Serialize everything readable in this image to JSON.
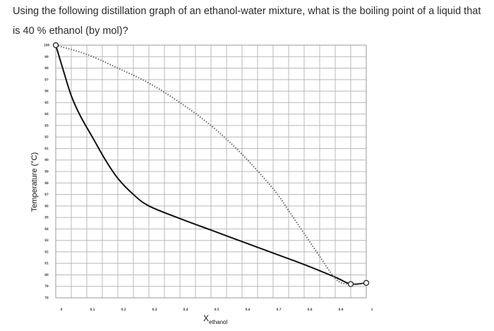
{
  "question": {
    "text": "Using the following distillation graph of an ethanol-water mixture, what is the boiling point of a liquid that is 40 % ethanol (by mol)?"
  },
  "chart_data": {
    "type": "line",
    "title": "",
    "xlabel_main": "X",
    "xlabel_sub": "ethanol",
    "ylabel": "Temperature (°C)",
    "xlim": [
      0,
      1
    ],
    "ylim": [
      78,
      100
    ],
    "x_ticks": [
      "0",
      "0.1",
      "0.2",
      "0.3",
      "0.4",
      "0.5",
      "0.6",
      "0.7",
      "0.8",
      "0.9",
      "1"
    ],
    "y_ticks": [
      "100",
      "99",
      "98",
      "97",
      "96",
      "95",
      "94",
      "93",
      "92",
      "91",
      "90",
      "89",
      "88",
      "87",
      "86",
      "85",
      "84",
      "83",
      "82",
      "81",
      "80",
      "79",
      "78"
    ],
    "grid": true,
    "series": [
      {
        "style": "solid",
        "color": "#111111",
        "points": [
          [
            0,
            100
          ],
          [
            0.02,
            98.2
          ],
          [
            0.05,
            95.6
          ],
          [
            0.08,
            93.8
          ],
          [
            0.12,
            91.9
          ],
          [
            0.16,
            90.0
          ],
          [
            0.2,
            88.4
          ],
          [
            0.25,
            87.0
          ],
          [
            0.3,
            86.0
          ],
          [
            0.4,
            84.9
          ],
          [
            0.5,
            83.9
          ],
          [
            0.6,
            82.9
          ],
          [
            0.7,
            81.9
          ],
          [
            0.8,
            80.9
          ],
          [
            0.9,
            79.8
          ],
          [
            0.95,
            79.2
          ],
          [
            1,
            79.3
          ]
        ]
      },
      {
        "style": "dotted",
        "color": "#666666",
        "points": [
          [
            0,
            100
          ],
          [
            0.1,
            99.2
          ],
          [
            0.2,
            98.0
          ],
          [
            0.3,
            96.7
          ],
          [
            0.4,
            95.0
          ],
          [
            0.5,
            93.0
          ],
          [
            0.6,
            90.5
          ],
          [
            0.7,
            87.5
          ],
          [
            0.75,
            85.6
          ],
          [
            0.8,
            83.6
          ],
          [
            0.85,
            81.6
          ],
          [
            0.88,
            80.4
          ],
          [
            0.9,
            79.7
          ],
          [
            0.92,
            79.3
          ],
          [
            0.95,
            79.2
          ],
          [
            1,
            79.3
          ]
        ]
      }
    ],
    "markers": [
      [
        0,
        100
      ],
      [
        0.95,
        79.2
      ],
      [
        1,
        79.3
      ]
    ]
  }
}
